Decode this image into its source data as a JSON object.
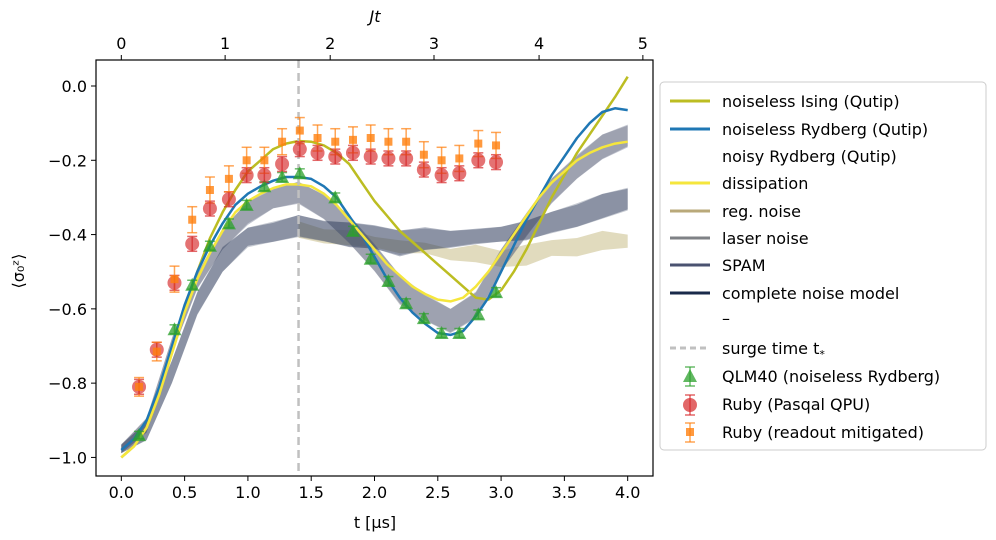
{
  "chart_data": {
    "type": "line",
    "xlabel": "t [μs]",
    "ylabel": "⟨σ₀ᶻ⟩",
    "top_xlabel": "Jt",
    "xlim": [
      -0.2,
      4.2
    ],
    "ylim": [
      -1.05,
      0.07
    ],
    "x_ticks": [
      "0.0",
      "0.5",
      "1.0",
      "1.5",
      "2.0",
      "2.5",
      "3.0",
      "3.5",
      "4.0"
    ],
    "x_tick_values": [
      0.0,
      0.5,
      1.0,
      1.5,
      2.0,
      2.5,
      3.0,
      3.5,
      4.0
    ],
    "y_ticks": [
      "−1.0",
      "−0.8",
      "−0.6",
      "−0.4",
      "−0.2",
      "0.0"
    ],
    "y_tick_values": [
      -1.0,
      -0.8,
      -0.6,
      -0.4,
      -0.2,
      0.0
    ],
    "top_x_ticks": [
      "0",
      "1",
      "2",
      "3",
      "4",
      "5"
    ],
    "top_x_tick_values": [
      0.0,
      0.82,
      1.65,
      2.47,
      3.3,
      4.12
    ],
    "surge_time": 1.4,
    "legend": {
      "noiseless_ising": "noiseless Ising (Qutip)",
      "noiseless_rydberg": "noiseless Rydberg (Qutip)",
      "noisy_rydberg_header": "noisy Rydberg (Qutip)",
      "dissipation": "dissipation",
      "reg_noise": "reg. noise",
      "laser_noise": "laser noise",
      "spam": "SPAM",
      "complete_noise": "complete noise model",
      "spacer": "–",
      "surge_label": "surge time t",
      "surge_sub": "*",
      "qlm40": "QLM40 (noiseless Rydberg)",
      "ruby": "Ruby (Pasqal QPU)",
      "ruby_mitigated": "Ruby (readout mitigated)"
    },
    "colors": {
      "ising": "#bcbd22",
      "rydberg": "#1f77b4",
      "dissipation": "#f5e63c",
      "reg_noise": "#c8bd88",
      "laser_noise": "#858a93",
      "spam": "#4f5a78",
      "complete": "#1a2a4a",
      "surge": "#c0c0c0",
      "qlm": "#2ca02c",
      "ruby": "#d62728",
      "ruby_mitigated": "#ff7f0e"
    },
    "series": {
      "noiseless_ising": {
        "x": [
          0,
          0.1,
          0.2,
          0.3,
          0.4,
          0.5,
          0.6,
          0.7,
          0.8,
          0.9,
          1.0,
          1.1,
          1.2,
          1.3,
          1.4,
          1.5,
          1.6,
          1.7,
          1.8,
          1.9,
          2.0,
          2.1,
          2.2,
          2.3,
          2.4,
          2.5,
          2.6,
          2.7,
          2.8,
          2.9,
          3.0,
          3.1,
          3.2,
          3.3,
          3.4,
          3.5,
          3.6,
          3.7,
          3.8,
          3.9,
          4.0
        ],
        "y": [
          -1.0,
          -0.97,
          -0.92,
          -0.83,
          -0.71,
          -0.6,
          -0.5,
          -0.41,
          -0.34,
          -0.28,
          -0.23,
          -0.2,
          -0.17,
          -0.155,
          -0.148,
          -0.15,
          -0.16,
          -0.18,
          -0.21,
          -0.26,
          -0.31,
          -0.35,
          -0.39,
          -0.42,
          -0.45,
          -0.48,
          -0.51,
          -0.54,
          -0.57,
          -0.575,
          -0.55,
          -0.5,
          -0.44,
          -0.37,
          -0.3,
          -0.24,
          -0.18,
          -0.13,
          -0.08,
          -0.03,
          0.025
        ]
      },
      "noiseless_rydberg": {
        "x": [
          0,
          0.1,
          0.2,
          0.3,
          0.4,
          0.5,
          0.6,
          0.7,
          0.8,
          0.9,
          1.0,
          1.1,
          1.2,
          1.3,
          1.4,
          1.5,
          1.6,
          1.7,
          1.8,
          1.9,
          2.0,
          2.1,
          2.2,
          2.3,
          2.4,
          2.5,
          2.6,
          2.7,
          2.8,
          2.9,
          3.0,
          3.1,
          3.2,
          3.3,
          3.4,
          3.5,
          3.6,
          3.7,
          3.8,
          3.9,
          4.0
        ],
        "y": [
          -0.98,
          -0.95,
          -0.9,
          -0.81,
          -0.7,
          -0.59,
          -0.5,
          -0.43,
          -0.37,
          -0.32,
          -0.29,
          -0.27,
          -0.255,
          -0.245,
          -0.245,
          -0.25,
          -0.27,
          -0.3,
          -0.35,
          -0.4,
          -0.46,
          -0.52,
          -0.57,
          -0.61,
          -0.64,
          -0.665,
          -0.67,
          -0.66,
          -0.62,
          -0.57,
          -0.5,
          -0.43,
          -0.36,
          -0.3,
          -0.24,
          -0.19,
          -0.14,
          -0.1,
          -0.07,
          -0.06,
          -0.065
        ]
      },
      "dissipation": {
        "x": [
          0,
          0.1,
          0.2,
          0.3,
          0.4,
          0.5,
          0.6,
          0.7,
          0.8,
          0.9,
          1.0,
          1.1,
          1.2,
          1.3,
          1.4,
          1.5,
          1.6,
          1.7,
          1.8,
          1.9,
          2.0,
          2.1,
          2.2,
          2.3,
          2.4,
          2.5,
          2.6,
          2.7,
          2.8,
          2.9,
          3.0,
          3.1,
          3.2,
          3.3,
          3.4,
          3.5,
          3.6,
          3.7,
          3.8,
          3.9,
          4.0
        ],
        "y": [
          -1.0,
          -0.97,
          -0.92,
          -0.83,
          -0.72,
          -0.61,
          -0.52,
          -0.45,
          -0.39,
          -0.34,
          -0.31,
          -0.29,
          -0.275,
          -0.265,
          -0.265,
          -0.27,
          -0.29,
          -0.32,
          -0.36,
          -0.4,
          -0.44,
          -0.48,
          -0.51,
          -0.54,
          -0.56,
          -0.575,
          -0.58,
          -0.57,
          -0.54,
          -0.5,
          -0.45,
          -0.4,
          -0.35,
          -0.3,
          -0.26,
          -0.23,
          -0.2,
          -0.18,
          -0.165,
          -0.155,
          -0.15
        ]
      },
      "band_grey": {
        "x": [
          0,
          0.2,
          0.4,
          0.6,
          0.8,
          1.0,
          1.2,
          1.4,
          1.6,
          1.8,
          2.0,
          2.2,
          2.4,
          2.6,
          2.8,
          3.0,
          3.2,
          3.4,
          3.6,
          3.8,
          4.0
        ],
        "lower": [
          -0.99,
          -0.93,
          -0.72,
          -0.55,
          -0.44,
          -0.38,
          -0.33,
          -0.32,
          -0.36,
          -0.42,
          -0.5,
          -0.58,
          -0.63,
          -0.66,
          -0.62,
          -0.5,
          -0.4,
          -0.32,
          -0.25,
          -0.2,
          -0.17
        ],
        "upper": [
          -0.97,
          -0.89,
          -0.68,
          -0.5,
          -0.38,
          -0.31,
          -0.27,
          -0.26,
          -0.29,
          -0.35,
          -0.43,
          -0.51,
          -0.57,
          -0.6,
          -0.56,
          -0.44,
          -0.34,
          -0.25,
          -0.18,
          -0.13,
          -0.1
        ]
      },
      "band_spam": {
        "x": [
          0,
          0.2,
          0.4,
          0.6,
          0.8,
          1.0,
          1.2,
          1.4,
          1.6,
          1.8,
          2.0,
          2.2,
          2.4,
          2.6,
          2.8,
          3.0,
          3.2,
          3.4,
          3.6,
          3.8,
          4.0
        ],
        "lower": [
          -0.99,
          -0.95,
          -0.8,
          -0.62,
          -0.5,
          -0.44,
          -0.42,
          -0.41,
          -0.42,
          -0.43,
          -0.44,
          -0.45,
          -0.44,
          -0.43,
          -0.42,
          -0.42,
          -0.41,
          -0.4,
          -0.38,
          -0.36,
          -0.34
        ],
        "upper": [
          -0.97,
          -0.9,
          -0.74,
          -0.55,
          -0.43,
          -0.38,
          -0.36,
          -0.35,
          -0.36,
          -0.37,
          -0.38,
          -0.39,
          -0.39,
          -0.39,
          -0.39,
          -0.38,
          -0.36,
          -0.34,
          -0.31,
          -0.29,
          -0.27
        ]
      },
      "band_reg": {
        "x": [
          1.4,
          1.6,
          1.8,
          2.0,
          2.2,
          2.4,
          2.6,
          2.8,
          3.0,
          3.2,
          3.4,
          3.6,
          3.8,
          4.0
        ],
        "lower": [
          -0.41,
          -0.42,
          -0.43,
          -0.44,
          -0.45,
          -0.46,
          -0.47,
          -0.48,
          -0.49,
          -0.48,
          -0.46,
          -0.45,
          -0.44,
          -0.43
        ],
        "upper": [
          -0.37,
          -0.38,
          -0.39,
          -0.4,
          -0.41,
          -0.42,
          -0.43,
          -0.43,
          -0.44,
          -0.43,
          -0.42,
          -0.41,
          -0.4,
          -0.4
        ]
      },
      "qlm40": {
        "x": [
          0.14,
          0.42,
          0.56,
          0.7,
          0.85,
          0.99,
          1.13,
          1.27,
          1.41,
          1.69,
          1.83,
          1.97,
          2.11,
          2.25,
          2.39,
          2.53,
          2.67,
          2.82,
          2.96
        ],
        "y": [
          -0.94,
          -0.655,
          -0.535,
          -0.43,
          -0.37,
          -0.32,
          -0.27,
          -0.245,
          -0.235,
          -0.3,
          -0.39,
          -0.465,
          -0.525,
          -0.585,
          -0.625,
          -0.665,
          -0.665,
          -0.615,
          -0.555
        ],
        "err": [
          0.01,
          0.012,
          0.012,
          0.012,
          0.012,
          0.012,
          0.012,
          0.012,
          0.012,
          0.012,
          0.012,
          0.012,
          0.012,
          0.012,
          0.012,
          0.012,
          0.012,
          0.012,
          0.012
        ]
      },
      "ruby": {
        "x": [
          0.14,
          0.28,
          0.42,
          0.56,
          0.7,
          0.85,
          0.99,
          1.13,
          1.27,
          1.41,
          1.55,
          1.69,
          1.83,
          1.97,
          2.11,
          2.25,
          2.39,
          2.53,
          2.67,
          2.82,
          2.96
        ],
        "y": [
          -0.81,
          -0.71,
          -0.53,
          -0.425,
          -0.33,
          -0.305,
          -0.24,
          -0.24,
          -0.21,
          -0.17,
          -0.18,
          -0.19,
          -0.18,
          -0.19,
          -0.195,
          -0.195,
          -0.225,
          -0.24,
          -0.235,
          -0.2,
          -0.205
        ],
        "err": [
          0.02,
          0.02,
          0.02,
          0.02,
          0.02,
          0.02,
          0.02,
          0.02,
          0.02,
          0.02,
          0.02,
          0.02,
          0.02,
          0.02,
          0.02,
          0.02,
          0.02,
          0.02,
          0.02,
          0.02,
          0.02
        ]
      },
      "ruby_mitigated": {
        "x": [
          0.14,
          0.28,
          0.42,
          0.56,
          0.7,
          0.85,
          0.99,
          1.13,
          1.27,
          1.41,
          1.55,
          1.69,
          1.83,
          1.97,
          2.11,
          2.25,
          2.39,
          2.53,
          2.67,
          2.82,
          2.96
        ],
        "y": [
          -0.81,
          -0.715,
          -0.52,
          -0.36,
          -0.28,
          -0.25,
          -0.2,
          -0.2,
          -0.15,
          -0.12,
          -0.14,
          -0.15,
          -0.145,
          -0.14,
          -0.15,
          -0.15,
          -0.185,
          -0.2,
          -0.195,
          -0.155,
          -0.16
        ],
        "err": [
          0.025,
          0.025,
          0.035,
          0.035,
          0.035,
          0.035,
          0.035,
          0.035,
          0.035,
          0.035,
          0.035,
          0.035,
          0.035,
          0.035,
          0.035,
          0.035,
          0.035,
          0.035,
          0.035,
          0.035,
          0.035
        ]
      }
    }
  }
}
